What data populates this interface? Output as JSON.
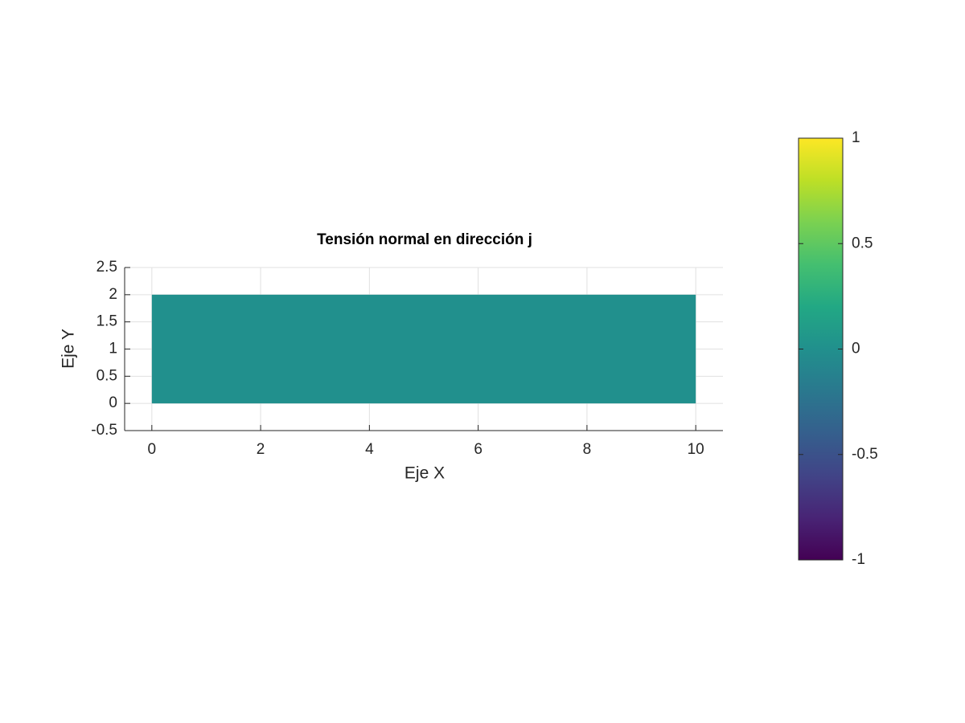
{
  "chart_data": {
    "type": "patch",
    "title": "Tensión normal en dirección j",
    "xlabel": "Eje X",
    "ylabel": "Eje Y",
    "xlim": [
      -0.5,
      10.5
    ],
    "ylim": [
      -0.5,
      2.5
    ],
    "xticks": [
      0,
      2,
      4,
      6,
      8,
      10
    ],
    "yticks": [
      -0.5,
      0,
      0.5,
      1,
      1.5,
      2,
      2.5
    ],
    "grid": true,
    "patch": {
      "x": [
        0,
        10
      ],
      "y": [
        0,
        2
      ],
      "value": 0
    },
    "colorbar": {
      "clim": [
        -1,
        1
      ],
      "ticks": [
        -1,
        -0.5,
        0,
        0.5,
        1
      ],
      "colormap": "viridis"
    }
  }
}
